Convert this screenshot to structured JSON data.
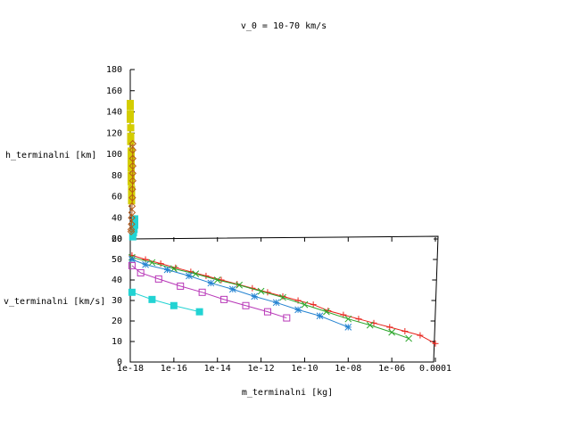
{
  "chart_data": {
    "type": "scatter",
    "title": "v_0 = 10-70 km/s",
    "xlabel": "m_terminalni [kg]",
    "y2label": "h_terminalni [km]",
    "ylabel": "v_terminalni [km/s]",
    "x_scale": "log",
    "xlim": [
      1e-18,
      0.0001
    ],
    "h_axis": {
      "range": [
        20,
        180
      ],
      "ticks": [
        "20",
        "40",
        "60",
        "80",
        "100",
        "120",
        "140",
        "160",
        "180"
      ]
    },
    "v_axis": {
      "range": [
        0,
        60
      ],
      "ticks": [
        "0",
        "10",
        "20",
        "30",
        "40",
        "50",
        "60"
      ]
    },
    "x_ticks": [
      "1e-18",
      "1e-16",
      "1e-14",
      "1e-12",
      "1e-10",
      "1e-08",
      "1e-06",
      "0.0001"
    ],
    "colors": {
      "red": "#e8231b",
      "green": "#2aa62a",
      "blue": "#2483d1",
      "magenta": "#b838b8",
      "cyan": "#22d3d3",
      "yellow": "#d4cd00",
      "brown": "#b55a18"
    },
    "series": [
      {
        "color_key": "red",
        "marker": "plus",
        "v_points": [
          [
            1.2e-18,
            52
          ],
          [
            5e-18,
            50
          ],
          [
            2.5e-17,
            48
          ],
          [
            1.2e-16,
            46
          ],
          [
            6e-16,
            44
          ],
          [
            3e-15,
            42
          ],
          [
            1.5e-14,
            40
          ],
          [
            8e-14,
            38
          ],
          [
            4e-13,
            36
          ],
          [
            2e-12,
            34
          ],
          [
            1e-11,
            32
          ],
          [
            5e-11,
            30
          ],
          [
            2.5e-10,
            28
          ],
          [
            1.2e-09,
            25
          ],
          [
            6e-09,
            23
          ],
          [
            3e-08,
            21
          ],
          [
            1.5e-07,
            19
          ],
          [
            8e-07,
            17
          ],
          [
            4e-06,
            15
          ],
          [
            2e-05,
            13
          ],
          [
            0.0001,
            9
          ]
        ]
      },
      {
        "color_key": "green",
        "marker": "cross",
        "v_points": [
          [
            1.2e-18,
            51
          ],
          [
            1e-17,
            48.5
          ],
          [
            1e-16,
            45.5
          ],
          [
            1e-15,
            43
          ],
          [
            1e-14,
            40
          ],
          [
            1e-13,
            37.5
          ],
          [
            1e-12,
            34.5
          ],
          [
            1e-11,
            31.5
          ],
          [
            1e-10,
            28
          ],
          [
            1e-09,
            24.5
          ],
          [
            1e-08,
            21
          ],
          [
            1e-07,
            18
          ],
          [
            1e-06,
            14.5
          ],
          [
            6e-06,
            11.5
          ]
        ]
      },
      {
        "color_key": "blue",
        "marker": "star",
        "v_points": [
          [
            1.2e-18,
            50
          ],
          [
            5e-18,
            47.5
          ],
          [
            5e-17,
            45
          ],
          [
            5e-16,
            42
          ],
          [
            5e-15,
            38.5
          ],
          [
            5e-14,
            35.5
          ],
          [
            5e-13,
            32
          ],
          [
            5e-12,
            29
          ],
          [
            5e-11,
            25.5
          ],
          [
            5e-10,
            22.5
          ],
          [
            1e-08,
            17
          ]
        ]
      },
      {
        "color_key": "magenta",
        "marker": "open-square",
        "v_points": [
          [
            1.2e-18,
            47
          ],
          [
            3e-18,
            43.5
          ],
          [
            2e-17,
            40.5
          ],
          [
            2e-16,
            37
          ],
          [
            2e-15,
            34
          ],
          [
            2e-14,
            30.5
          ],
          [
            2e-13,
            27.5
          ],
          [
            2e-12,
            24.5
          ],
          [
            1.5e-11,
            21.5
          ]
        ]
      },
      {
        "color_key": "cyan",
        "marker": "filled-square",
        "v_points": [
          [
            1.2e-18,
            34
          ],
          [
            1e-17,
            30.5
          ],
          [
            1e-16,
            27.5
          ],
          [
            1.5e-15,
            24.5
          ]
        ]
      },
      {
        "color_key": "yellow",
        "marker": "filled-square",
        "h_points": [
          [
            1e-18,
            148
          ],
          [
            1e-18,
            145
          ],
          [
            1e-18,
            138
          ],
          [
            1e-18,
            133
          ],
          [
            1.05e-18,
            125
          ],
          [
            1.05e-18,
            117
          ],
          [
            1.05e-18,
            112
          ],
          [
            1.1e-18,
            103
          ],
          [
            1.1e-18,
            99
          ],
          [
            1.1e-18,
            93
          ],
          [
            1.1e-18,
            87
          ],
          [
            1.1e-18,
            80
          ],
          [
            1.1e-18,
            74
          ],
          [
            1.15e-18,
            67
          ],
          [
            1.15e-18,
            62
          ],
          [
            1.15e-18,
            56
          ]
        ]
      },
      {
        "color_key": "cyan",
        "marker": "filled-square",
        "h_points": [
          [
            1.6e-18,
            39
          ],
          [
            1.6e-18,
            36
          ],
          [
            1.6e-18,
            33
          ],
          [
            1.5e-18,
            29
          ],
          [
            1.4e-18,
            26
          ],
          [
            1.3e-18,
            22
          ]
        ]
      },
      {
        "color_key": "brown",
        "marker": "open-diamond",
        "h_points": [
          [
            1.3e-18,
            110
          ],
          [
            1.3e-18,
            104
          ],
          [
            1.3e-18,
            96
          ],
          [
            1.3e-18,
            89
          ],
          [
            1.3e-18,
            82
          ],
          [
            1.3e-18,
            75
          ],
          [
            1.25e-18,
            67
          ],
          [
            1.25e-18,
            59
          ],
          [
            1.2e-18,
            51
          ],
          [
            1.2e-18,
            45
          ],
          [
            1.15e-18,
            40
          ],
          [
            1.15e-18,
            34
          ],
          [
            1.1e-18,
            29
          ],
          [
            1.1e-18,
            27
          ]
        ]
      }
    ]
  }
}
